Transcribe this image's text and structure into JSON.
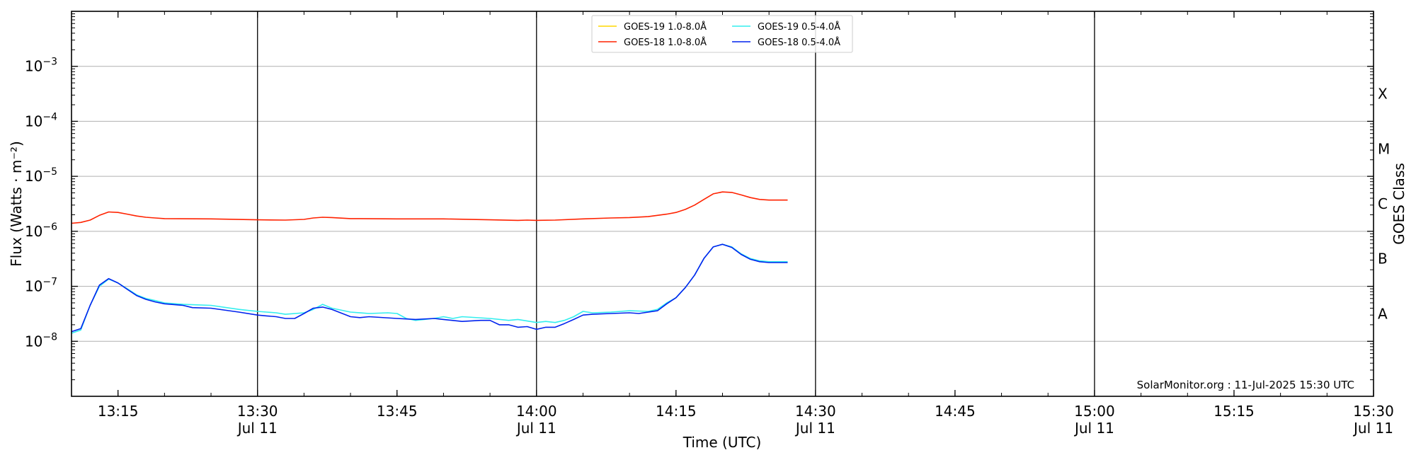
{
  "chart_data": {
    "type": "line",
    "xlabel": "Time (UTC)",
    "ylabel": "Flux (Watts · m⁻²)",
    "right_label": "GOES Class",
    "y_scale": "log",
    "ylim": [
      1e-09,
      0.01
    ],
    "xlim": [
      "13:10",
      "15:30"
    ],
    "grid": "horizontal at decades",
    "legend_position": "top-center",
    "watermark": "SolarMonitor.org : 11-Jul-2025 15:30 UTC",
    "x_ticks": [
      {
        "time": "13:15",
        "label": "13:15",
        "sub": ""
      },
      {
        "time": "13:30",
        "label": "13:30",
        "sub": "Jul 11"
      },
      {
        "time": "13:45",
        "label": "13:45",
        "sub": ""
      },
      {
        "time": "14:00",
        "label": "14:00",
        "sub": "Jul 11"
      },
      {
        "time": "14:15",
        "label": "14:15",
        "sub": ""
      },
      {
        "time": "14:30",
        "label": "14:30",
        "sub": "Jul 11"
      },
      {
        "time": "14:45",
        "label": "14:45",
        "sub": ""
      },
      {
        "time": "15:00",
        "label": "15:00",
        "sub": "Jul 11"
      },
      {
        "time": "15:15",
        "label": "15:15",
        "sub": ""
      },
      {
        "time": "15:30",
        "label": "15:30",
        "sub": "Jul 11"
      }
    ],
    "vertical_lines": [
      "13:30",
      "14:00",
      "14:30",
      "15:00"
    ],
    "y_ticks": [
      {
        "value": 1e-08,
        "base": "10",
        "exp": "−8"
      },
      {
        "value": 1e-07,
        "base": "10",
        "exp": "−7"
      },
      {
        "value": 1e-06,
        "base": "10",
        "exp": "−6"
      },
      {
        "value": 1e-05,
        "base": "10",
        "exp": "−5"
      },
      {
        "value": 0.0001,
        "base": "10",
        "exp": "−4"
      },
      {
        "value": 0.001,
        "base": "10",
        "exp": "−3"
      }
    ],
    "goes_classes": [
      {
        "label": "A",
        "value": 3.16e-08
      },
      {
        "label": "B",
        "value": 3.16e-07
      },
      {
        "label": "C",
        "value": 3.16e-06
      },
      {
        "label": "M",
        "value": 3.16e-05
      },
      {
        "label": "X",
        "value": 0.000316
      }
    ],
    "series": [
      {
        "name": "GOES-19 1.0-8.0Å",
        "color": "#ffd700",
        "points": []
      },
      {
        "name": "GOES-18 1.0-8.0Å",
        "color": "#ff2200",
        "points": [
          [
            "13:10",
            1.4e-06
          ],
          [
            "13:11",
            1.45e-06
          ],
          [
            "13:12",
            1.6e-06
          ],
          [
            "13:13",
            1.95e-06
          ],
          [
            "13:14",
            2.25e-06
          ],
          [
            "13:15",
            2.2e-06
          ],
          [
            "13:16",
            2.05e-06
          ],
          [
            "13:17",
            1.9e-06
          ],
          [
            "13:18",
            1.8e-06
          ],
          [
            "13:19",
            1.75e-06
          ],
          [
            "13:20",
            1.7e-06
          ],
          [
            "13:25",
            1.68e-06
          ],
          [
            "13:30",
            1.62e-06
          ],
          [
            "13:33",
            1.6e-06
          ],
          [
            "13:35",
            1.65e-06
          ],
          [
            "13:36",
            1.75e-06
          ],
          [
            "13:37",
            1.8e-06
          ],
          [
            "13:38",
            1.78e-06
          ],
          [
            "13:40",
            1.7e-06
          ],
          [
            "13:45",
            1.68e-06
          ],
          [
            "13:50",
            1.68e-06
          ],
          [
            "13:55",
            1.62e-06
          ],
          [
            "13:58",
            1.58e-06
          ],
          [
            "13:59",
            1.6e-06
          ],
          [
            "14:00",
            1.58e-06
          ],
          [
            "14:02",
            1.6e-06
          ],
          [
            "14:05",
            1.68e-06
          ],
          [
            "14:08",
            1.75e-06
          ],
          [
            "14:10",
            1.78e-06
          ],
          [
            "14:12",
            1.85e-06
          ],
          [
            "14:14",
            2.05e-06
          ],
          [
            "14:15",
            2.2e-06
          ],
          [
            "14:16",
            2.5e-06
          ],
          [
            "14:17",
            3e-06
          ],
          [
            "14:18",
            3.8e-06
          ],
          [
            "14:19",
            4.8e-06
          ],
          [
            "14:20",
            5.2e-06
          ],
          [
            "14:21",
            5.1e-06
          ],
          [
            "14:22",
            4.6e-06
          ],
          [
            "14:23",
            4.1e-06
          ],
          [
            "14:24",
            3.8e-06
          ],
          [
            "14:25",
            3.7e-06
          ],
          [
            "14:27",
            3.7e-06
          ]
        ]
      },
      {
        "name": "GOES-19 0.5-4.0Å",
        "color": "#33eeee",
        "points": [
          [
            "13:10",
            1.4e-08
          ],
          [
            "13:11",
            1.6e-08
          ],
          [
            "13:12",
            4.5e-08
          ],
          [
            "13:13",
            1e-07
          ],
          [
            "13:14",
            1.35e-07
          ],
          [
            "13:15",
            1.15e-07
          ],
          [
            "13:16",
            9e-08
          ],
          [
            "13:17",
            7e-08
          ],
          [
            "13:18",
            6e-08
          ],
          [
            "13:19",
            5.5e-08
          ],
          [
            "13:20",
            5e-08
          ],
          [
            "13:22",
            4.7e-08
          ],
          [
            "13:25",
            4.5e-08
          ],
          [
            "13:28",
            3.8e-08
          ],
          [
            "13:30",
            3.5e-08
          ],
          [
            "13:31",
            3.4e-08
          ],
          [
            "13:32",
            3.3e-08
          ],
          [
            "13:33",
            3.1e-08
          ],
          [
            "13:35",
            3.3e-08
          ],
          [
            "13:36",
            3.8e-08
          ],
          [
            "13:37",
            4.7e-08
          ],
          [
            "13:38",
            4e-08
          ],
          [
            "13:40",
            3.4e-08
          ],
          [
            "13:42",
            3.2e-08
          ],
          [
            "13:44",
            3.3e-08
          ],
          [
            "13:45",
            3.2e-08
          ],
          [
            "13:46",
            2.6e-08
          ],
          [
            "13:47",
            2.4e-08
          ],
          [
            "13:49",
            2.6e-08
          ],
          [
            "13:50",
            2.8e-08
          ],
          [
            "13:51",
            2.6e-08
          ],
          [
            "13:52",
            2.8e-08
          ],
          [
            "13:55",
            2.6e-08
          ],
          [
            "13:57",
            2.4e-08
          ],
          [
            "13:58",
            2.5e-08
          ],
          [
            "14:00",
            2.2e-08
          ],
          [
            "14:01",
            2.3e-08
          ],
          [
            "14:02",
            2.2e-08
          ],
          [
            "14:03",
            2.4e-08
          ],
          [
            "14:04",
            2.8e-08
          ],
          [
            "14:05",
            3.5e-08
          ],
          [
            "14:06",
            3.3e-08
          ],
          [
            "14:08",
            3.4e-08
          ],
          [
            "14:10",
            3.6e-08
          ],
          [
            "14:12",
            3.5e-08
          ],
          [
            "14:13",
            3.8e-08
          ],
          [
            "14:14",
            5e-08
          ],
          [
            "14:15",
            6.2e-08
          ],
          [
            "14:16",
            9.5e-08
          ],
          [
            "14:17",
            1.6e-07
          ],
          [
            "14:18",
            3.2e-07
          ],
          [
            "14:19",
            5.2e-07
          ],
          [
            "14:20",
            5.8e-07
          ],
          [
            "14:21",
            5.2e-07
          ],
          [
            "14:22",
            3.9e-07
          ],
          [
            "14:23",
            3.2e-07
          ],
          [
            "14:24",
            2.9e-07
          ],
          [
            "14:25",
            2.8e-07
          ],
          [
            "14:27",
            2.8e-07
          ]
        ]
      },
      {
        "name": "GOES-18 0.5-4.0Å",
        "color": "#0022ee",
        "points": [
          [
            "13:10",
            1.5e-08
          ],
          [
            "13:11",
            1.7e-08
          ],
          [
            "13:12",
            4.5e-08
          ],
          [
            "13:13",
            1.05e-07
          ],
          [
            "13:14",
            1.38e-07
          ],
          [
            "13:15",
            1.15e-07
          ],
          [
            "13:16",
            8.8e-08
          ],
          [
            "13:17",
            6.8e-08
          ],
          [
            "13:18",
            5.8e-08
          ],
          [
            "13:19",
            5.2e-08
          ],
          [
            "13:20",
            4.8e-08
          ],
          [
            "13:22",
            4.5e-08
          ],
          [
            "13:23",
            4.1e-08
          ],
          [
            "13:25",
            4e-08
          ],
          [
            "13:28",
            3.4e-08
          ],
          [
            "13:30",
            3e-08
          ],
          [
            "13:31",
            2.9e-08
          ],
          [
            "13:32",
            2.8e-08
          ],
          [
            "13:33",
            2.6e-08
          ],
          [
            "13:34",
            2.6e-08
          ],
          [
            "13:35",
            3.2e-08
          ],
          [
            "13:36",
            4e-08
          ],
          [
            "13:37",
            4.2e-08
          ],
          [
            "13:38",
            3.8e-08
          ],
          [
            "13:40",
            2.8e-08
          ],
          [
            "13:41",
            2.7e-08
          ],
          [
            "13:42",
            2.8e-08
          ],
          [
            "13:45",
            2.6e-08
          ],
          [
            "13:47",
            2.5e-08
          ],
          [
            "13:49",
            2.6e-08
          ],
          [
            "13:50",
            2.5e-08
          ],
          [
            "13:52",
            2.3e-08
          ],
          [
            "13:54",
            2.4e-08
          ],
          [
            "13:55",
            2.4e-08
          ],
          [
            "13:56",
            2e-08
          ],
          [
            "13:57",
            2e-08
          ],
          [
            "13:58",
            1.8e-08
          ],
          [
            "13:59",
            1.85e-08
          ],
          [
            "14:00",
            1.65e-08
          ],
          [
            "14:01",
            1.8e-08
          ],
          [
            "14:02",
            1.8e-08
          ],
          [
            "14:03",
            2.1e-08
          ],
          [
            "14:04",
            2.5e-08
          ],
          [
            "14:05",
            3e-08
          ],
          [
            "14:06",
            3.1e-08
          ],
          [
            "14:08",
            3.2e-08
          ],
          [
            "14:10",
            3.3e-08
          ],
          [
            "14:11",
            3.2e-08
          ],
          [
            "14:13",
            3.6e-08
          ],
          [
            "14:14",
            4.8e-08
          ],
          [
            "14:15",
            6.2e-08
          ],
          [
            "14:16",
            9.5e-08
          ],
          [
            "14:17",
            1.6e-07
          ],
          [
            "14:18",
            3.2e-07
          ],
          [
            "14:19",
            5.2e-07
          ],
          [
            "14:20",
            5.8e-07
          ],
          [
            "14:21",
            5.1e-07
          ],
          [
            "14:22",
            3.8e-07
          ],
          [
            "14:23",
            3.1e-07
          ],
          [
            "14:24",
            2.8e-07
          ],
          [
            "14:25",
            2.7e-07
          ],
          [
            "14:27",
            2.7e-07
          ]
        ]
      }
    ]
  }
}
